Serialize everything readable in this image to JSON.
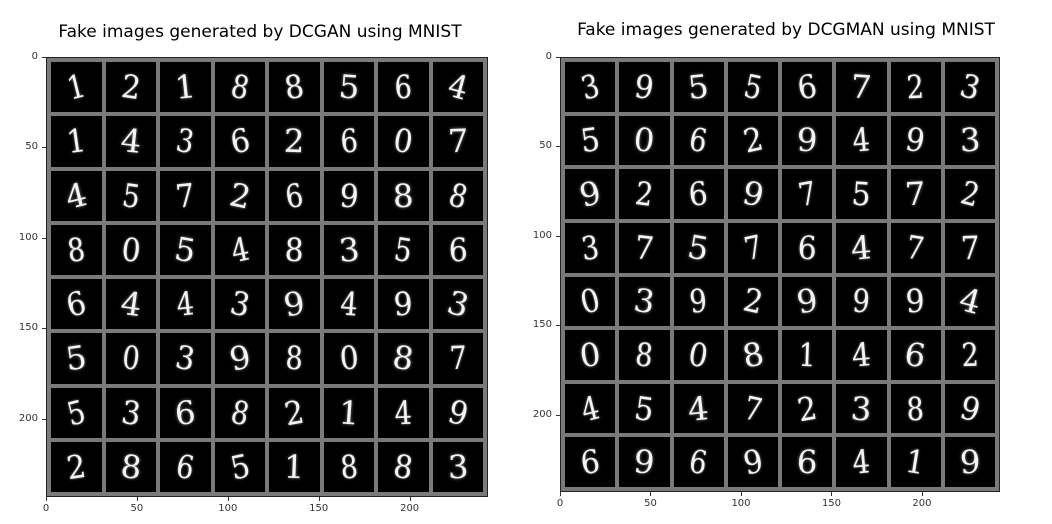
{
  "left_panel": {
    "title": "Fake images generated by DCGAN using MNIST",
    "y_ticks": [
      "0",
      "50",
      "100",
      "150",
      "200"
    ],
    "x_ticks": [
      "0",
      "50",
      "100",
      "150",
      "200"
    ],
    "digits": [
      [
        "1",
        "2",
        "1",
        "8",
        "8",
        "5",
        "6",
        "4"
      ],
      [
        "1",
        "4",
        "3",
        "6",
        "2",
        "6",
        "0",
        "7"
      ],
      [
        "4",
        "5",
        "7",
        "2",
        "6",
        "9",
        "8",
        "8"
      ],
      [
        "8",
        "0",
        "5",
        "4",
        "8",
        "3",
        "5",
        "6"
      ],
      [
        "6",
        "4",
        "4",
        "3",
        "9",
        "4",
        "9",
        "3"
      ],
      [
        "5",
        "0",
        "3",
        "9",
        "8",
        "0",
        "8",
        "7"
      ],
      [
        "5",
        "3",
        "6",
        "8",
        "2",
        "1",
        "4",
        "9"
      ],
      [
        "2",
        "8",
        "6",
        "5",
        "1",
        "8",
        "8",
        "3"
      ]
    ]
  },
  "right_panel": {
    "title": "Fake images generated by DCGMAN using MNIST",
    "y_ticks": [
      "0",
      "50",
      "100",
      "150",
      "200"
    ],
    "x_ticks": [
      "0",
      "50",
      "100",
      "150",
      "200"
    ],
    "digits": [
      [
        "3",
        "9",
        "5",
        "5",
        "6",
        "7",
        "2",
        "3"
      ],
      [
        "5",
        "0",
        "6",
        "2",
        "9",
        "4",
        "9",
        "3"
      ],
      [
        "9",
        "2",
        "6",
        "9",
        "7",
        "5",
        "7",
        "2"
      ],
      [
        "3",
        "7",
        "5",
        "7",
        "6",
        "4",
        "7",
        "7"
      ],
      [
        "0",
        "3",
        "9",
        "2",
        "9",
        "9",
        "9",
        "4"
      ],
      [
        "0",
        "8",
        "0",
        "8",
        "1",
        "4",
        "6",
        "2"
      ],
      [
        "4",
        "5",
        "4",
        "7",
        "2",
        "3",
        "8",
        "9"
      ],
      [
        "6",
        "9",
        "6",
        "9",
        "6",
        "4",
        "1",
        "9"
      ]
    ]
  }
}
